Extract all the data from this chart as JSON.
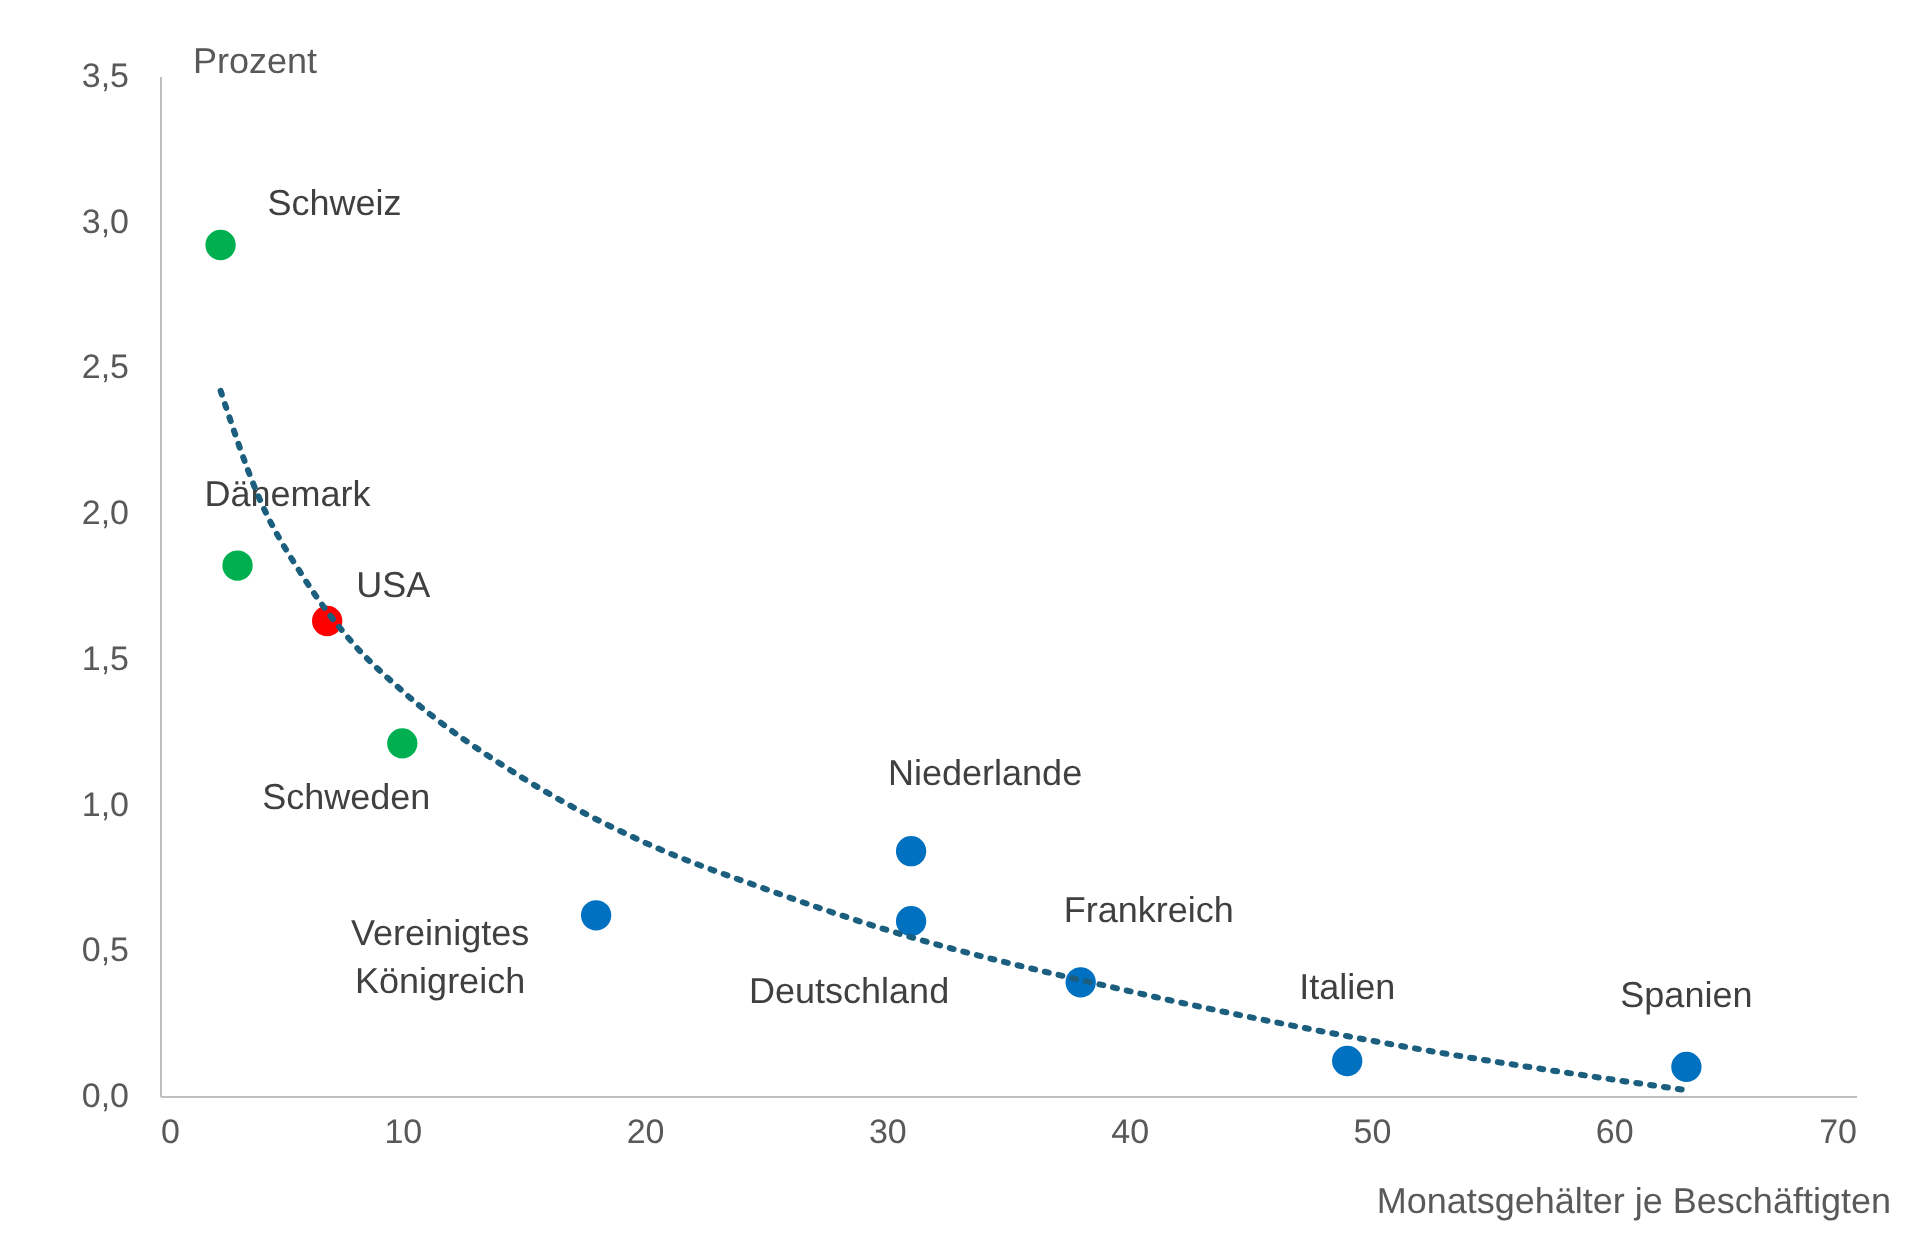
{
  "chart_data": {
    "type": "scatter",
    "xlabel": "Monatsgehälter je Beschäftigten",
    "ylabel": "Prozent",
    "marker": "circle",
    "xlim": [
      0,
      70
    ],
    "xticks": [
      0,
      10,
      20,
      30,
      40,
      50,
      60,
      70
    ],
    "ylim": [
      0,
      3.5
    ],
    "yticks": [
      {
        "value": 0,
        "label": "0,0"
      },
      {
        "value": 0.5,
        "label": "0,5"
      },
      {
        "value": 1,
        "label": "1,0"
      },
      {
        "value": 1.5,
        "label": "1,5"
      },
      {
        "value": 2,
        "label": "2,0"
      },
      {
        "value": 2.5,
        "label": "2,5"
      },
      {
        "value": 3,
        "label": "3,0"
      },
      {
        "value": 3.5,
        "label": "3,5"
      }
    ],
    "series": [
      {
        "name": "Schweiz",
        "color": "#00b050",
        "x": [
          2.5
        ],
        "values": [
          2.92
        ]
      },
      {
        "name": "Dänemark",
        "color": "#00b050",
        "x": [
          3.2
        ],
        "values": [
          1.82
        ]
      },
      {
        "name": "USA",
        "color": "#ff0000",
        "x": [
          6.9
        ],
        "values": [
          1.63
        ]
      },
      {
        "name": "Schweden",
        "color": "#00b050",
        "x": [
          10
        ],
        "values": [
          1.21
        ]
      },
      {
        "name": "Vereinigtes Königreich",
        "color": "#0070c0",
        "x": [
          18
        ],
        "values": [
          0.62
        ]
      },
      {
        "name": "Niederlande",
        "color": "#0070c0",
        "x": [
          31
        ],
        "values": [
          0.84
        ]
      },
      {
        "name": "Deutschland",
        "color": "#0070c0",
        "x": [
          31
        ],
        "values": [
          0.6
        ]
      },
      {
        "name": "Frankreich",
        "color": "#0070c0",
        "x": [
          38
        ],
        "values": [
          0.39
        ]
      },
      {
        "name": "Italien",
        "color": "#0070c0",
        "x": [
          49
        ],
        "values": [
          0.12
        ]
      },
      {
        "name": "Spanien",
        "color": "#0070c0",
        "x": [
          63
        ],
        "values": [
          0.1
        ]
      },
      {
        "type": "line",
        "color": "#1b5e7e",
        "line_style": "dotted",
        "marker": "none",
        "x": [
          2.5,
          4,
          6,
          8,
          10,
          15,
          20,
          25,
          30,
          40,
          50,
          63
        ],
        "values": [
          2.42,
          2.07,
          1.77,
          1.55,
          1.39,
          1.09,
          0.87,
          0.71,
          0.57,
          0.36,
          0.19,
          0.02
        ]
      }
    ]
  }
}
